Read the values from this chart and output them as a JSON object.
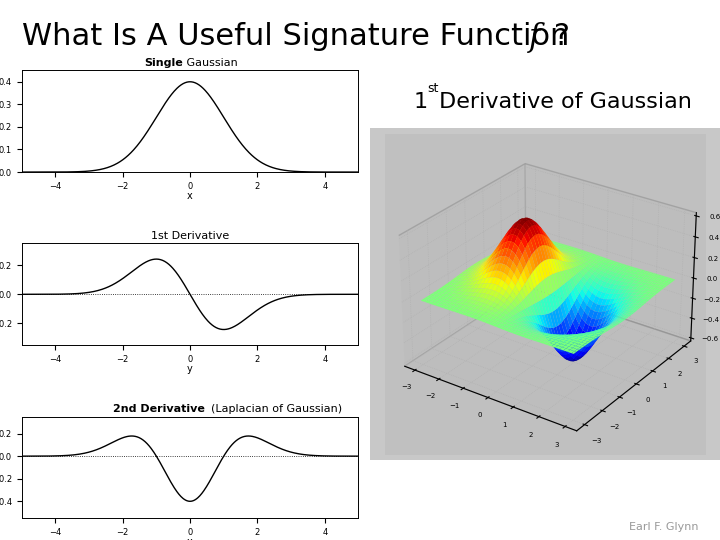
{
  "title_main": "What Is A Useful Signature Function ",
  "title_italic": "f",
  "title_suffix": " ?",
  "label_3d_num": "1",
  "label_3d_sup": "st",
  "label_3d_text": " Derivative of Gaussian",
  "plot1_title_bold": "Single",
  "plot1_title_rest": " Gaussian",
  "plot2_title": "1st Derivative",
  "plot3_title_bold": "2nd Derivative",
  "plot3_title_rest": "  (Laplacian of Gaussian)",
  "author": "Earl F. Glynn",
  "bg_color": "#ffffff",
  "line_color": "#000000",
  "title_fontsize": 22,
  "label_3d_fontsize": 16,
  "plot_title_fontsize": 8,
  "tick_fontsize": 6,
  "axis_label_fontsize": 7,
  "author_fontsize": 8,
  "sigma": 1.0,
  "x_min": -5.0,
  "x_max": 5.0,
  "gaussian_ylim": [
    0.0,
    0.45
  ],
  "d1_ylim": [
    -0.35,
    0.35
  ],
  "d2_ylim": [
    -0.55,
    0.35
  ],
  "x3d_range": [
    -3.0,
    3.0
  ],
  "y3d_range": [
    -3.0,
    3.0
  ],
  "n3d_pts": 80,
  "elev3d": 28,
  "azim3d": -55,
  "pane_color": "#bbbbbb",
  "3d_bg_color": "#c0c0c0"
}
